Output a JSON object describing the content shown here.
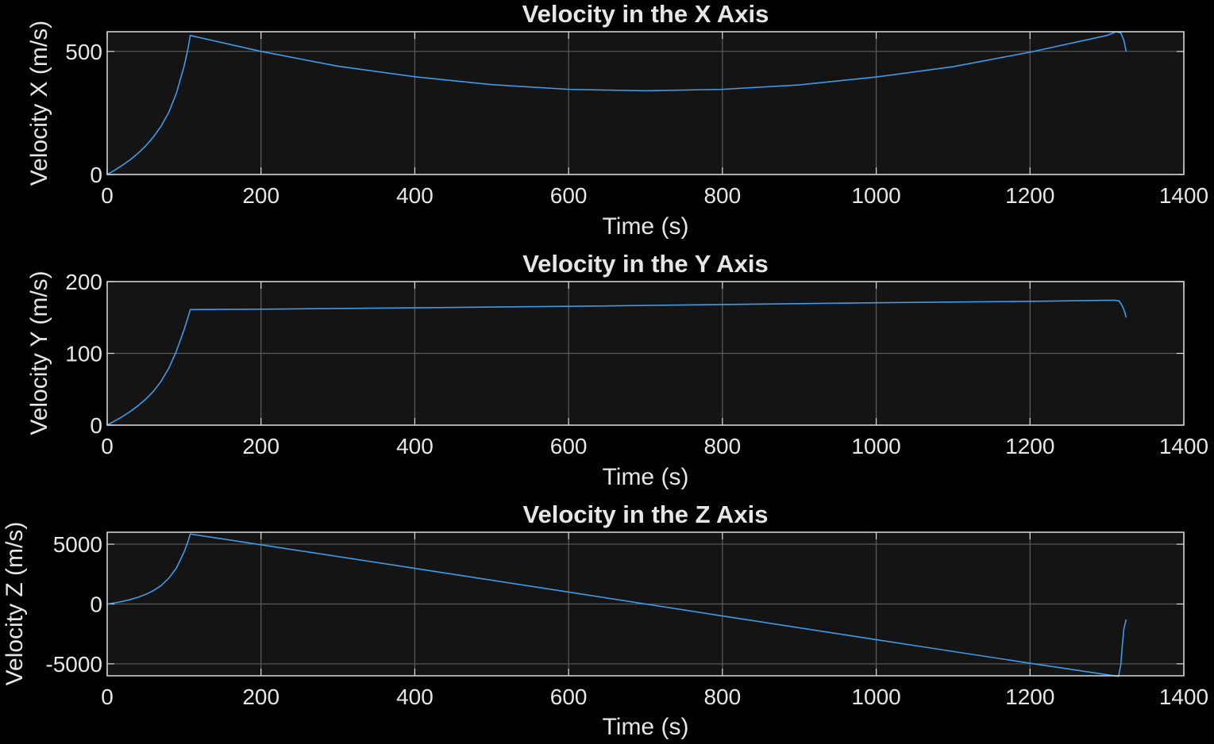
{
  "figure": {
    "background": "#000000",
    "axes_background": "#141414",
    "grid_color": "#5c5c5c",
    "frame_color": "#d9d9d9",
    "text_color": "#e6e6e6",
    "line_color": "#3d9be9"
  },
  "chart_data": [
    {
      "type": "line",
      "title": "Velocity in the X Axis",
      "xlabel": "Time (s)",
      "ylabel": "Velocity X (m/s)",
      "xlim": [
        0,
        1400
      ],
      "ylim": [
        0,
        580
      ],
      "xticks": [
        0,
        200,
        400,
        600,
        800,
        1000,
        1200,
        1400
      ],
      "xticklabels": [
        "0",
        "200",
        "400",
        "600",
        "800",
        "1000",
        "1200",
        "1400"
      ],
      "yticks": [
        0,
        500
      ],
      "yticklabels": [
        "0",
        "500"
      ],
      "grid": true,
      "series": [
        {
          "color": "#3d9be9",
          "x": [
            0,
            10,
            20,
            30,
            40,
            50,
            60,
            70,
            80,
            90,
            100,
            105,
            108,
            200,
            300,
            400,
            500,
            600,
            700,
            800,
            900,
            1000,
            1100,
            1200,
            1300,
            1312,
            1318,
            1322,
            1325
          ],
          "y": [
            0,
            18,
            38,
            60,
            86,
            116,
            152,
            196,
            252,
            330,
            440,
            510,
            565,
            500,
            440,
            397,
            365,
            346,
            340,
            346,
            364,
            396,
            438,
            497,
            565,
            580,
            575,
            545,
            500
          ]
        }
      ]
    },
    {
      "type": "line",
      "title": "Velocity in the Y Axis",
      "xlabel": "Time (s)",
      "ylabel": "Velocity Y (m/s)",
      "xlim": [
        0,
        1400
      ],
      "ylim": [
        0,
        200
      ],
      "xticks": [
        0,
        200,
        400,
        600,
        800,
        1000,
        1200,
        1400
      ],
      "xticklabels": [
        "0",
        "200",
        "400",
        "600",
        "800",
        "1000",
        "1200",
        "1400"
      ],
      "yticks": [
        0,
        100,
        200
      ],
      "yticklabels": [
        "0",
        "100",
        "200"
      ],
      "grid": true,
      "series": [
        {
          "color": "#3d9be9",
          "x": [
            0,
            10,
            20,
            30,
            40,
            50,
            60,
            70,
            80,
            90,
            100,
            105,
            108,
            200,
            400,
            600,
            800,
            1000,
            1200,
            1310,
            1316,
            1320,
            1323,
            1325
          ],
          "y": [
            0,
            6,
            12,
            19,
            27,
            36,
            47,
            61,
            79,
            103,
            133,
            150,
            161,
            161.5,
            163.5,
            165.5,
            168,
            170.5,
            172.5,
            174,
            173,
            166,
            158,
            150
          ]
        }
      ]
    },
    {
      "type": "line",
      "title": "Velocity in the Z Axis",
      "xlabel": "Time (s)",
      "ylabel": "Velocity Z (m/s)",
      "xlim": [
        0,
        1400
      ],
      "ylim": [
        -6000,
        6000
      ],
      "xticks": [
        0,
        200,
        400,
        600,
        800,
        1000,
        1200,
        1400
      ],
      "xticklabels": [
        "0",
        "200",
        "400",
        "600",
        "800",
        "1000",
        "1200",
        "1400"
      ],
      "yticks": [
        -5000,
        0,
        5000
      ],
      "yticklabels": [
        "-5000",
        "0",
        "5000"
      ],
      "grid": true,
      "series": [
        {
          "color": "#3d9be9",
          "x": [
            0,
            10,
            20,
            30,
            40,
            50,
            60,
            70,
            80,
            90,
            100,
            105,
            108,
            200,
            400,
            600,
            700,
            800,
            1000,
            1200,
            1315,
            1318,
            1320,
            1322,
            1325
          ],
          "y": [
            0,
            100,
            220,
            370,
            560,
            800,
            1120,
            1540,
            2150,
            3000,
            4350,
            5200,
            5850,
            4950,
            2980,
            1000,
            0,
            -1000,
            -2980,
            -4950,
            -6050,
            -5100,
            -3500,
            -2100,
            -1300
          ]
        }
      ]
    }
  ]
}
